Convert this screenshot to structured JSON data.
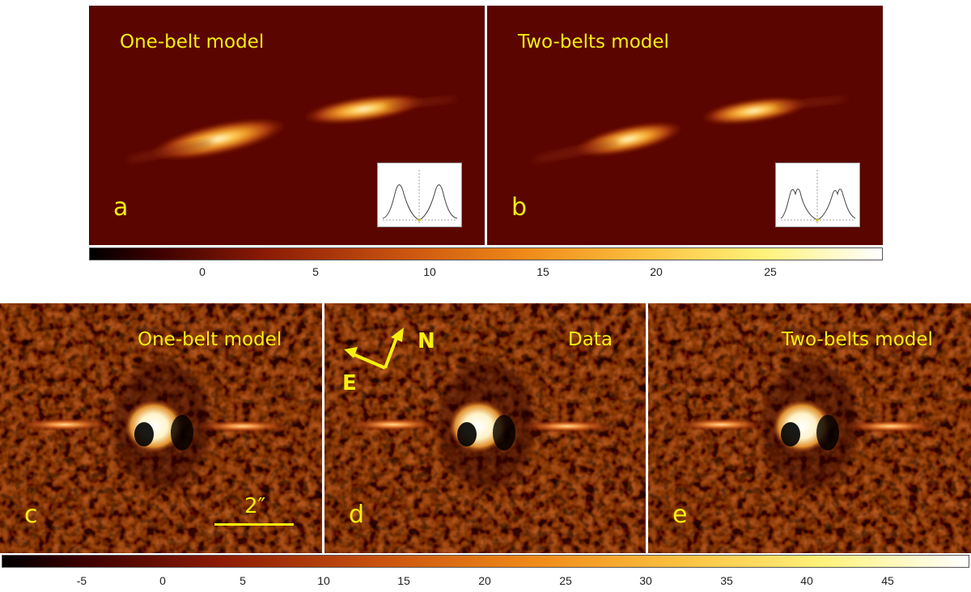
{
  "top_row": {
    "panel_a": {
      "title": "One-belt model",
      "letter": "a"
    },
    "panel_b": {
      "title": "Two-belts model",
      "letter": "b"
    },
    "colorbar": {
      "ticks": [
        "0",
        "5",
        "10",
        "15",
        "20",
        "25"
      ]
    }
  },
  "bottom_row": {
    "panel_c": {
      "title": "One-belt model",
      "letter": "c",
      "scalebar_label": "2″"
    },
    "panel_d": {
      "title": "Data",
      "letter": "d",
      "compass": {
        "north": "N",
        "east": "E"
      }
    },
    "panel_e": {
      "title": "Two-belts model",
      "letter": "e"
    },
    "colorbar": {
      "ticks": [
        "-5",
        "0",
        "5",
        "10",
        "15",
        "20",
        "25",
        "30",
        "35",
        "40",
        "45"
      ]
    }
  },
  "colors": {
    "label_yellow": "#f5ee10",
    "background_dark": "#5a0500"
  }
}
